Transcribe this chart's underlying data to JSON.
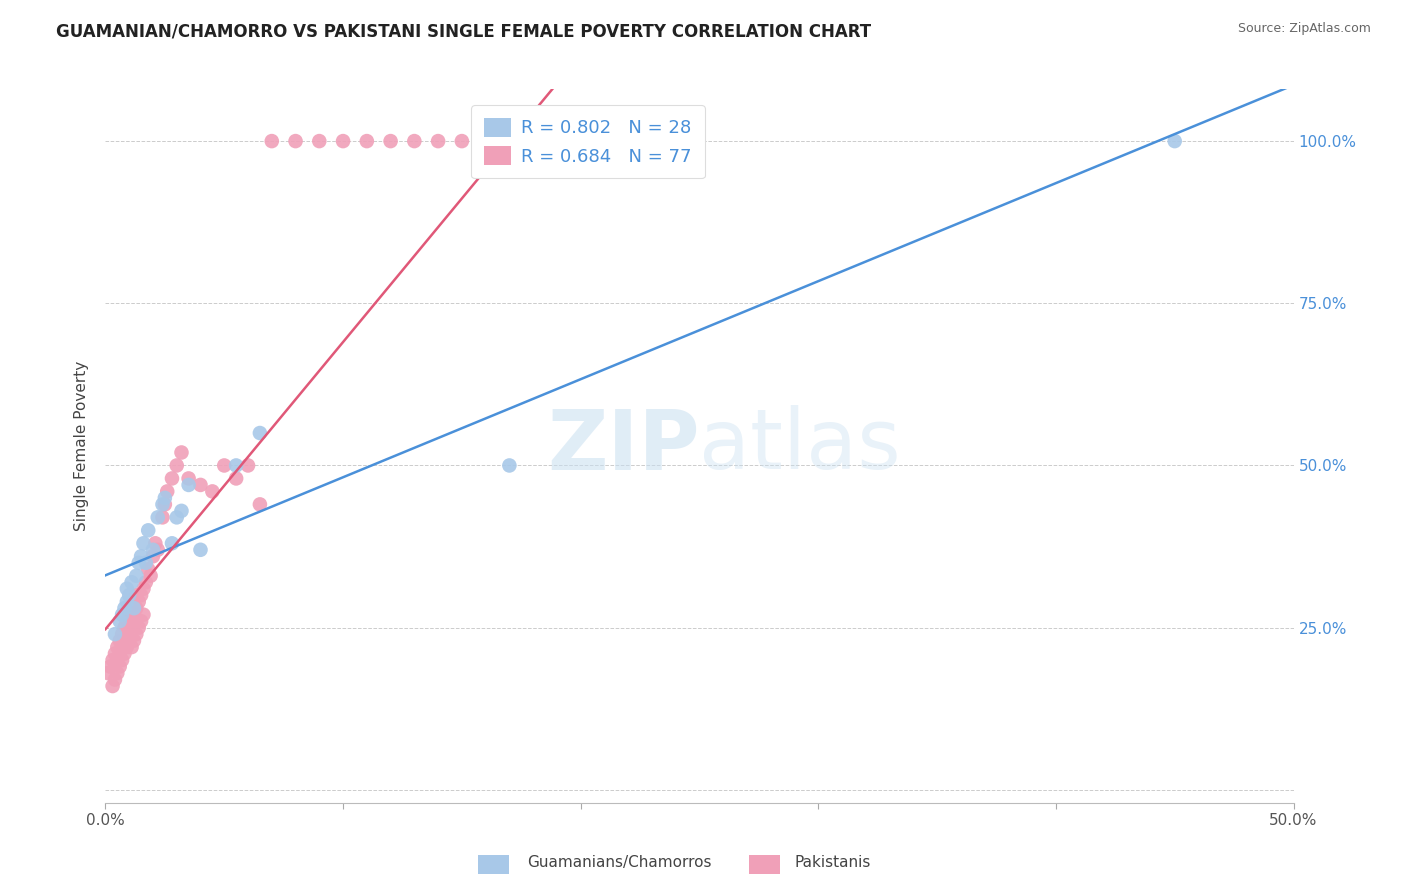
{
  "title": "GUAMANIAN/CHAMORRO VS PAKISTANI SINGLE FEMALE POVERTY CORRELATION CHART",
  "source": "Source: ZipAtlas.com",
  "ylabel": "Single Female Poverty",
  "watermark_zip": "ZIP",
  "watermark_atlas": "atlas",
  "xlim": [
    0.0,
    0.5
  ],
  "ylim": [
    -0.02,
    1.08
  ],
  "legend_blue_r": "R = 0.802",
  "legend_blue_n": "N = 28",
  "legend_pink_r": "R = 0.684",
  "legend_pink_n": "N = 77",
  "legend_label_blue": "Guamanians/Chamorros",
  "legend_label_pink": "Pakistanis",
  "blue_color": "#a8c8e8",
  "pink_color": "#f0a0b8",
  "blue_line_color": "#4a90d9",
  "pink_line_color": "#e05878",
  "legend_text_color": "#4a90d9",
  "title_color": "#222222",
  "source_color": "#666666",
  "ylabel_color": "#444444",
  "tick_color": "#555555",
  "right_tick_color": "#4a90d9",
  "grid_color": "#cccccc",
  "background_color": "#ffffff",
  "blue_scatter_x": [
    0.004,
    0.006,
    0.007,
    0.008,
    0.009,
    0.009,
    0.01,
    0.011,
    0.012,
    0.013,
    0.014,
    0.015,
    0.016,
    0.017,
    0.018,
    0.02,
    0.022,
    0.024,
    0.025,
    0.028,
    0.03,
    0.032,
    0.035,
    0.04,
    0.055,
    0.065,
    0.17,
    0.45
  ],
  "blue_scatter_y": [
    0.24,
    0.26,
    0.27,
    0.28,
    0.29,
    0.31,
    0.3,
    0.32,
    0.28,
    0.33,
    0.35,
    0.36,
    0.38,
    0.35,
    0.4,
    0.37,
    0.42,
    0.44,
    0.45,
    0.38,
    0.42,
    0.43,
    0.47,
    0.37,
    0.5,
    0.55,
    0.5,
    1.0
  ],
  "pink_scatter_x": [
    0.001,
    0.002,
    0.003,
    0.003,
    0.004,
    0.004,
    0.005,
    0.005,
    0.005,
    0.006,
    0.006,
    0.006,
    0.007,
    0.007,
    0.007,
    0.008,
    0.008,
    0.008,
    0.009,
    0.009,
    0.009,
    0.01,
    0.01,
    0.01,
    0.011,
    0.011,
    0.011,
    0.012,
    0.012,
    0.013,
    0.013,
    0.013,
    0.014,
    0.014,
    0.015,
    0.015,
    0.016,
    0.016,
    0.017,
    0.018,
    0.019,
    0.02,
    0.021,
    0.022,
    0.024,
    0.025,
    0.026,
    0.028,
    0.03,
    0.032,
    0.035,
    0.04,
    0.045,
    0.05,
    0.055,
    0.06,
    0.065,
    0.07,
    0.08,
    0.09,
    0.1,
    0.11,
    0.12,
    0.13,
    0.14,
    0.15,
    0.16,
    0.17,
    0.18,
    0.185,
    0.19,
    0.195,
    0.2,
    0.205,
    0.21,
    0.215,
    0.22
  ],
  "pink_scatter_y": [
    0.18,
    0.19,
    0.16,
    0.2,
    0.17,
    0.21,
    0.18,
    0.2,
    0.22,
    0.19,
    0.21,
    0.23,
    0.2,
    0.22,
    0.24,
    0.21,
    0.23,
    0.25,
    0.22,
    0.24,
    0.26,
    0.23,
    0.25,
    0.27,
    0.22,
    0.26,
    0.28,
    0.23,
    0.27,
    0.24,
    0.28,
    0.3,
    0.25,
    0.29,
    0.26,
    0.3,
    0.27,
    0.31,
    0.32,
    0.34,
    0.33,
    0.36,
    0.38,
    0.37,
    0.42,
    0.44,
    0.46,
    0.48,
    0.5,
    0.52,
    0.48,
    0.47,
    0.46,
    0.5,
    0.48,
    0.5,
    0.44,
    1.0,
    1.0,
    1.0,
    1.0,
    1.0,
    1.0,
    1.0,
    1.0,
    1.0,
    1.0,
    1.0,
    1.0,
    1.0,
    1.0,
    1.0,
    1.0,
    1.0,
    1.0,
    1.0,
    1.0
  ]
}
